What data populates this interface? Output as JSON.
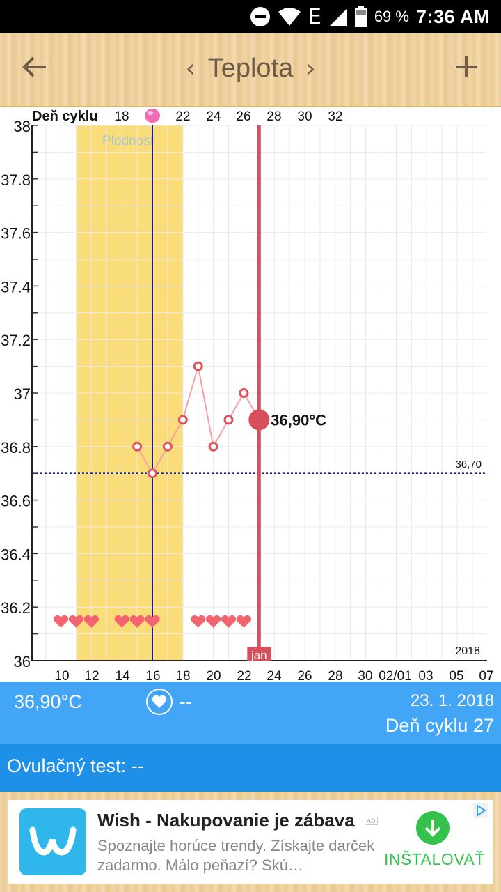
{
  "status_bar": {
    "battery_percent": "69 %",
    "time": "7:36 AM",
    "network_label": "E",
    "icons": [
      "dnd-icon",
      "wifi-icon",
      "signal-icon",
      "battery-icon"
    ]
  },
  "toolbar": {
    "title": "Teplota",
    "back_icon": "arrow-left-icon",
    "prev_icon": "chevron-left-icon",
    "next_icon": "chevron-right-icon",
    "add_icon": "plus-icon"
  },
  "chart_data": {
    "type": "line",
    "top_axis_label": "Deň cyklu",
    "cycle_day_ticks": [
      "18",
      "22",
      "24",
      "26",
      "28",
      "30",
      "32"
    ],
    "x_tick_labels": [
      "10",
      "12",
      "14",
      "16",
      "18",
      "20",
      "22",
      "24",
      "26",
      "28",
      "30",
      "02/01",
      "03",
      "05",
      "07"
    ],
    "y_tick_labels": [
      "38",
      "37.8",
      "37.6",
      "37.4",
      "37.2",
      "37",
      "36.8",
      "36.6",
      "36.4",
      "36.2",
      "36"
    ],
    "ylim": [
      36,
      38
    ],
    "grid": true,
    "fertile_window_label": "Plodnosť",
    "fertile_window": {
      "from_day": 11,
      "to_day": 18
    },
    "ovulation_day": 16,
    "coverline": {
      "value": 36.7,
      "label": "36,70"
    },
    "series": [
      {
        "points": [
          {
            "day": 15,
            "temp": 36.8
          },
          {
            "day": 16,
            "temp": 36.7
          },
          {
            "day": 17,
            "temp": 36.8
          },
          {
            "day": 18,
            "temp": 36.9
          },
          {
            "day": 19,
            "temp": 37.1
          },
          {
            "day": 20,
            "temp": 36.8
          },
          {
            "day": 21,
            "temp": 36.9
          },
          {
            "day": 22,
            "temp": 37.0
          },
          {
            "day": 23,
            "temp": 36.9
          }
        ]
      }
    ],
    "selected": {
      "day": 23,
      "temp": 36.9,
      "label": "36,90°C",
      "marker_label": "jan"
    },
    "heart_days": [
      10,
      11,
      12,
      14,
      15,
      16,
      19,
      20,
      21,
      22
    ],
    "year_label": "2018",
    "colors": {
      "fertile": "#fadc78",
      "line": "#f4a0a6",
      "point": "#e2525c",
      "selected": "#d9505d",
      "ovulation_line": "#1a237e",
      "coverline": "#1a237e",
      "heart": "#f2656e"
    }
  },
  "info_bar": {
    "temperature": "36,90°C",
    "heart_icon": "heart-circle-icon",
    "sex_value": "--",
    "date": "23. 1. 2018",
    "cycle_day": "Deň cyklu 27"
  },
  "ovulation_test": {
    "label": "Ovulačný test: --"
  },
  "ad": {
    "title": "Wish - Nakupovanie je zábava",
    "tag": "AD",
    "description": "Spoznajte horúce trendy. Získajte darček zadarmo. Málo peňazí? Skú…",
    "install_label": "INŠTALOVAŤ",
    "app_icon": "wish-logo-icon",
    "install_icon": "download-icon",
    "adchoices_icon": "adchoices-icon"
  }
}
